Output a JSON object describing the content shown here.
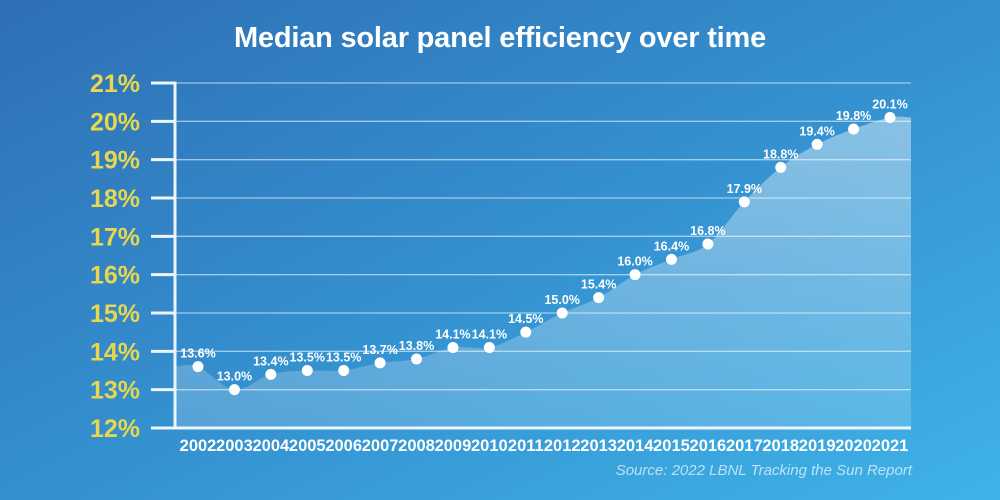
{
  "title": "Median solar panel efficiency over time",
  "source": "Source: 2022 LBNL Tracking the Sun Report",
  "colors": {
    "background_top": "#2e6fb5",
    "background_bottom": "#3fb3e8",
    "title": "#ffffff",
    "source_text": "rgba(235,250,255,0.72)",
    "axis": "#edf4fa",
    "gridline": "rgba(255,255,255,0.55)",
    "area_fill_top": "rgba(255,255,255,0.42)",
    "area_fill_bottom": "rgba(255,255,255,0.16)",
    "point": "#ffffff",
    "point_label": "#ffffff",
    "ytick_label": "#e8d74e",
    "xtick_label": "#ffffff"
  },
  "chart_data": {
    "type": "area",
    "title": "Median solar panel efficiency over time",
    "xlabel": "",
    "ylabel": "",
    "x": [
      2002,
      2003,
      2004,
      2005,
      2006,
      2007,
      2008,
      2009,
      2010,
      2011,
      2012,
      2013,
      2014,
      2015,
      2016,
      2017,
      2018,
      2019,
      2020,
      2021
    ],
    "values": [
      13.6,
      13.0,
      13.4,
      13.5,
      13.5,
      13.7,
      13.8,
      14.1,
      14.1,
      14.5,
      15.0,
      15.4,
      16.0,
      16.4,
      16.8,
      17.9,
      18.8,
      19.4,
      19.8,
      20.1
    ],
    "point_labels": [
      "13.6%",
      "13.0%",
      "13.4%",
      "13.5%",
      "13.5%",
      "13.7%",
      "13.8%",
      "14.1%",
      "14.1%",
      "14.5%",
      "15.0%",
      "15.4%",
      "16.0%",
      "16.4%",
      "16.8%",
      "17.9%",
      "18.8%",
      "19.4%",
      "19.8%",
      "20.1%"
    ],
    "ylim": [
      12,
      21
    ],
    "ytick_labels": [
      "12%",
      "13%",
      "14%",
      "15%",
      "16%",
      "17%",
      "18%",
      "19%",
      "20%",
      "21%"
    ],
    "grid": true,
    "legend": "none",
    "annotation": "Source: 2022 LBNL Tracking the Sun Report"
  }
}
